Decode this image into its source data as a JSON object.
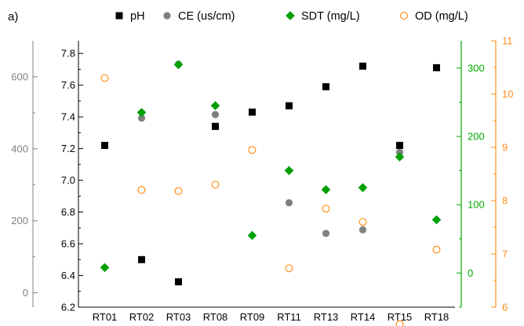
{
  "chart_data": {
    "type": "scatter",
    "panel_label": "a)",
    "categories": [
      "RT01",
      "RT02",
      "RT03",
      "RT08",
      "RT09",
      "RT11",
      "RT13",
      "RT14",
      "RT15",
      "RT18"
    ],
    "legend_placement": "top",
    "grid": false,
    "axes": {
      "ph": {
        "position": "left-inner",
        "color": "#000000",
        "range": [
          6.2,
          7.88
        ],
        "ticks": [
          "6.2",
          "6.4",
          "6.6",
          "6.8",
          "7.0",
          "7.2",
          "7.4",
          "7.6",
          "7.8"
        ],
        "tick_values": [
          6.2,
          6.4,
          6.6,
          6.8,
          7.0,
          7.2,
          7.4,
          7.6,
          7.8
        ]
      },
      "ce": {
        "position": "left-outer",
        "color": "#808080",
        "range": [
          -40,
          700
        ],
        "ticks": [
          "0",
          "200",
          "400",
          "600"
        ],
        "tick_values": [
          0,
          200,
          400,
          600
        ]
      },
      "sdt": {
        "position": "right-inner",
        "color": "#00aa00",
        "range": [
          -50,
          340
        ],
        "ticks": [
          "0",
          "100",
          "200",
          "300"
        ],
        "tick_values": [
          0,
          100,
          200,
          300
        ]
      },
      "od": {
        "position": "right-outer",
        "color": "#ff8c1a",
        "range": [
          6,
          11
        ],
        "ticks": [
          "6",
          "7",
          "8",
          "9",
          "10",
          "11"
        ],
        "tick_values": [
          6,
          7,
          8,
          9,
          10,
          11
        ]
      }
    },
    "series": [
      {
        "name": "pH",
        "axis": "ph",
        "marker": "square",
        "color": "#000000",
        "values": [
          7.22,
          6.5,
          6.36,
          7.34,
          7.43,
          7.47,
          7.59,
          7.72,
          7.22,
          7.71
        ]
      },
      {
        "name": "CE (us/cm)",
        "axis": "ce",
        "marker": "circle",
        "color": "#808080",
        "values": [
          null,
          485,
          635,
          495,
          null,
          250,
          165,
          175,
          390,
          null
        ]
      },
      {
        "name": "SDT (mg/L)",
        "axis": "sdt",
        "marker": "diamond",
        "color": "#00a000",
        "values": [
          8,
          235,
          305,
          245,
          55,
          150,
          122,
          125,
          170,
          78
        ]
      },
      {
        "name": "OD (mg/L)",
        "axis": "od",
        "marker": "open-circle",
        "color": "#ff8c1a",
        "values": [
          10.3,
          8.2,
          8.18,
          8.3,
          8.95,
          6.73,
          7.85,
          7.6,
          5.68,
          7.08
        ]
      }
    ]
  }
}
